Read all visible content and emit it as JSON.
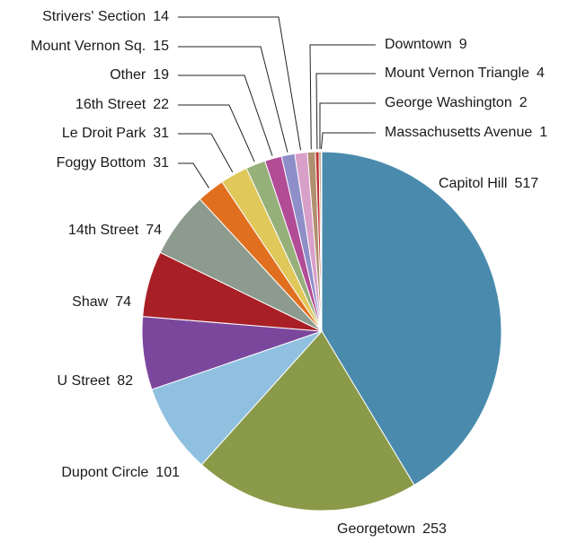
{
  "chart_data": {
    "type": "pie",
    "categories": [
      "Capitol Hill",
      "Georgetown",
      "Dupont Circle",
      "U Street",
      "Shaw",
      "14th Street",
      "Foggy Bottom",
      "Le Droit Park",
      "16th Street",
      "Other",
      "Mount Vernon Sq.",
      "Strivers' Section",
      "Downtown",
      "Mount Vernon Triangle",
      "George Washington",
      "Massachusetts Avenue"
    ],
    "values": [
      517,
      253,
      101,
      82,
      74,
      74,
      31,
      31,
      22,
      19,
      15,
      14,
      9,
      4,
      2,
      1
    ],
    "colors": [
      "#4a8bad",
      "#8a9a48",
      "#90c0e0",
      "#7b479c",
      "#a82026",
      "#8d9b8f",
      "#e07020",
      "#e0c85a",
      "#96b07a",
      "#b24c96",
      "#8e8ec8",
      "#d8a0c8",
      "#b09070",
      "#c03030",
      "#8a6a3a",
      "#d04020"
    ]
  }
}
